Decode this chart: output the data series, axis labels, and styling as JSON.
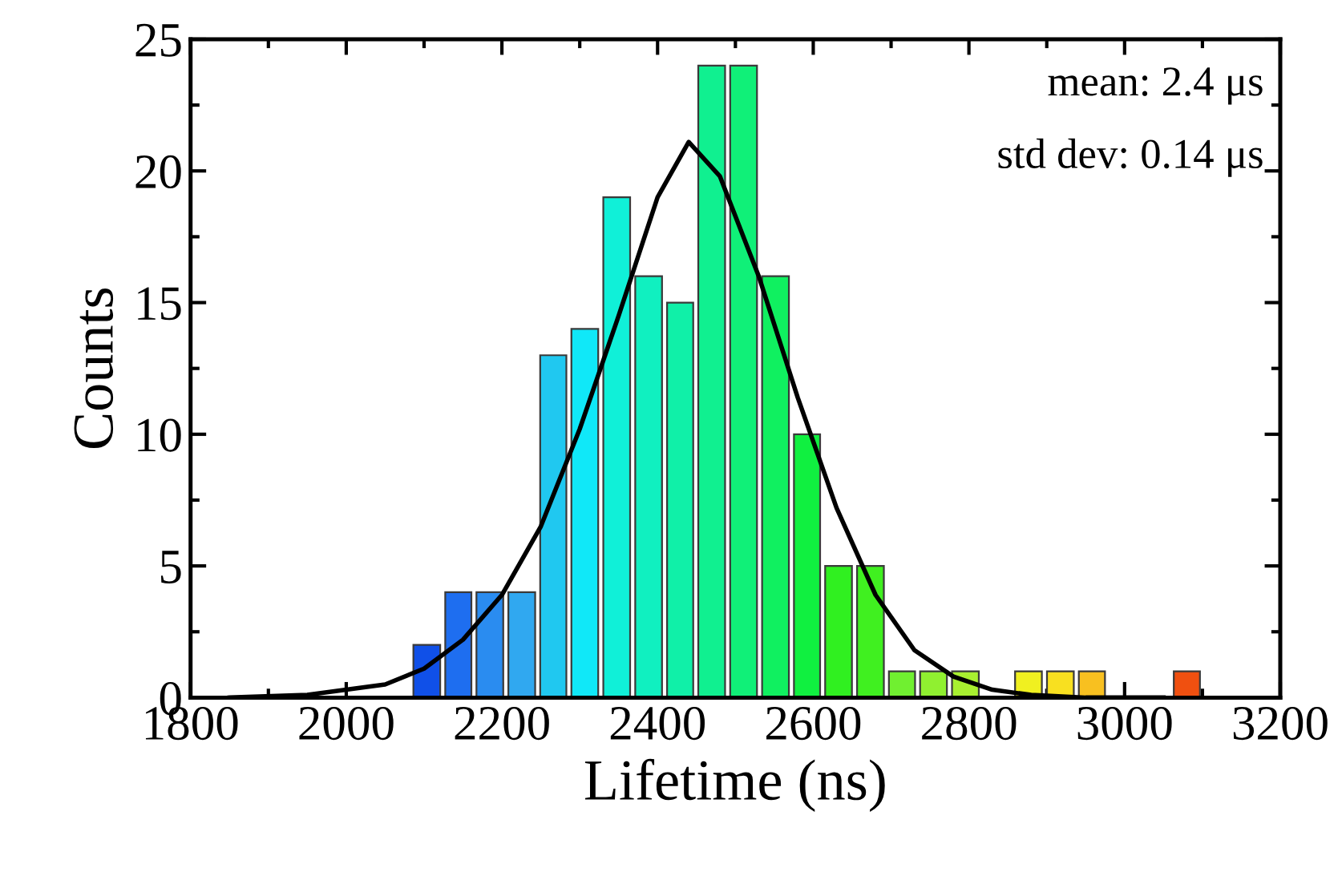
{
  "chart_data": {
    "type": "histogram",
    "xlabel": "Lifetime (ns)",
    "ylabel": "Counts",
    "bins": [
      2083,
      2124,
      2164,
      2205,
      2246,
      2286,
      2327,
      2368,
      2409,
      2449,
      2490,
      2531,
      2572,
      2612,
      2653,
      2694,
      2734,
      2775,
      2816,
      2856,
      2897,
      2938,
      2978,
      3060,
      3100
    ],
    "values": [
      2,
      4,
      4,
      4,
      13,
      14,
      19,
      16,
      15,
      24,
      24,
      16,
      10,
      5,
      5,
      1,
      1,
      1,
      0,
      1,
      1,
      1,
      0,
      1
    ],
    "colors": [
      "#1050e8",
      "#1e6ef0",
      "#2a8cf0",
      "#30a8f0",
      "#20c8f0",
      "#10e8f8",
      "#10f0d8",
      "#10f0c0",
      "#10f0a8",
      "#10f090",
      "#10f078",
      "#10f060",
      "#10f040",
      "#30f020",
      "#40f020",
      "#70f030",
      "#90f030",
      "#a8f030",
      null,
      "#f0f020",
      "#f8e020",
      "#f8c020",
      null,
      "#f05010"
    ],
    "series": [
      {
        "type": "line",
        "color": "#000000",
        "x": [
          1850,
          1950,
          2050,
          2100,
          2150,
          2200,
          2250,
          2300,
          2350,
          2400,
          2440,
          2480,
          2530,
          2580,
          2630,
          2680,
          2730,
          2780,
          2830,
          2880,
          2950,
          3050
        ],
        "values": [
          0,
          0.1,
          0.5,
          1.1,
          2.2,
          3.9,
          6.5,
          10.2,
          14.5,
          19,
          21.1,
          19.8,
          16,
          11.4,
          7.2,
          3.9,
          1.8,
          0.8,
          0.3,
          0.1,
          0,
          0
        ]
      }
    ],
    "xlim": [
      1800,
      3200
    ],
    "xticks": [
      1800,
      2000,
      2200,
      2400,
      2600,
      2800,
      3000,
      3200
    ],
    "ylim": [
      0,
      25
    ],
    "yticks": [
      0,
      5,
      10,
      15,
      20,
      25
    ],
    "annotations": [
      "mean: 2.4 μs",
      "std dev: 0.14 μs"
    ],
    "grid": false,
    "legend": false
  }
}
